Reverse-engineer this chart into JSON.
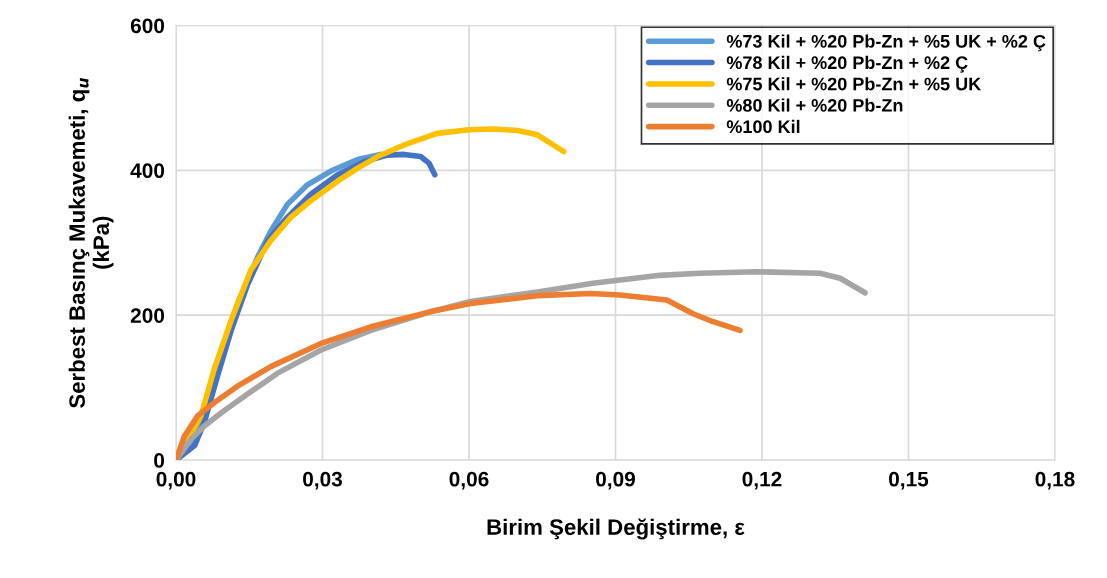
{
  "chart_data": {
    "type": "line",
    "xlabel": "Birim Şekil Değiştirme, ε",
    "ylabel": "Serbest Basınç Mukavemeti, q$_{u}$\n(kPa)",
    "xlim": [
      0,
      0.18
    ],
    "ylim": [
      0,
      600
    ],
    "xticks": [
      {
        "value": 0,
        "label": "0,00"
      },
      {
        "value": 0.03,
        "label": "0,03"
      },
      {
        "value": 0.06,
        "label": "0,06"
      },
      {
        "value": 0.09,
        "label": "0,09"
      },
      {
        "value": 0.12,
        "label": "0,12"
      },
      {
        "value": 0.15,
        "label": "0,15"
      },
      {
        "value": 0.18,
        "label": "0,18"
      }
    ],
    "yticks": [
      0,
      200,
      400,
      600
    ],
    "grid": true,
    "legend": "top right",
    "marker": "none",
    "line_style": "solid",
    "series": [
      {
        "name": "%73 Kil + %20 Pb-Zn + %5 UK + %2 Ç",
        "color": "#5b9bd5",
        "x": [
          0,
          0.0031,
          0.0058,
          0.0085,
          0.0126,
          0.0167,
          0.0194,
          0.0228,
          0.0269,
          0.0317,
          0.0372,
          0.0419
        ],
        "values": [
          0,
          24,
          70,
          134,
          216,
          280,
          316,
          353,
          380,
          399,
          415,
          422
        ]
      },
      {
        "name": "%78 Kil + %20 Pb-Zn + %2 Ç",
        "color": "#4472c4",
        "x": [
          0,
          0.0038,
          0.0058,
          0.0085,
          0.0113,
          0.0147,
          0.0188,
          0.0228,
          0.0276,
          0.0331,
          0.0385,
          0.0433,
          0.0467,
          0.0501,
          0.0518,
          0.053
        ],
        "values": [
          0,
          20,
          52,
          116,
          179,
          243,
          303,
          335,
          367,
          394,
          412,
          421,
          422,
          419,
          410,
          394
        ]
      },
      {
        "name": "%75 Kil + %20 Pb-Zn + %5 UK",
        "color": "#ffc000",
        "x": [
          0,
          0.0051,
          0.0078,
          0.0113,
          0.0153,
          0.0194,
          0.0235,
          0.0276,
          0.0331,
          0.0372,
          0.0413,
          0.0467,
          0.0535,
          0.06,
          0.065,
          0.07,
          0.074,
          0.0794
        ],
        "values": [
          0,
          61,
          125,
          193,
          262,
          303,
          335,
          358,
          385,
          403,
          419,
          435,
          451,
          456,
          457,
          455,
          449,
          426
        ]
      },
      {
        "name": "%80 Kil + %20 Pb-Zn",
        "color": "#a5a5a5",
        "x": [
          0,
          0.0031,
          0.0058,
          0.0092,
          0.014,
          0.0208,
          0.0297,
          0.0399,
          0.0522,
          0.0603,
          0.074,
          0.0854,
          0.0991,
          0.1073,
          0.1189,
          0.1319,
          0.136,
          0.1411
        ],
        "values": [
          0,
          29,
          47,
          65,
          88,
          120,
          152,
          179,
          205,
          219,
          232,
          244,
          255,
          258,
          260,
          258,
          251,
          231
        ]
      },
      {
        "name": "%100 Kil",
        "color": "#ed7d31",
        "x": [
          0,
          0.0017,
          0.0044,
          0.0078,
          0.0126,
          0.0194,
          0.0297,
          0.0399,
          0.0522,
          0.0603,
          0.074,
          0.0849,
          0.0909,
          0.1005,
          0.1059,
          0.11,
          0.1155
        ],
        "values": [
          0,
          33,
          61,
          79,
          102,
          129,
          161,
          184,
          205,
          216,
          227,
          230,
          228,
          221,
          202,
          191,
          179
        ]
      }
    ]
  }
}
